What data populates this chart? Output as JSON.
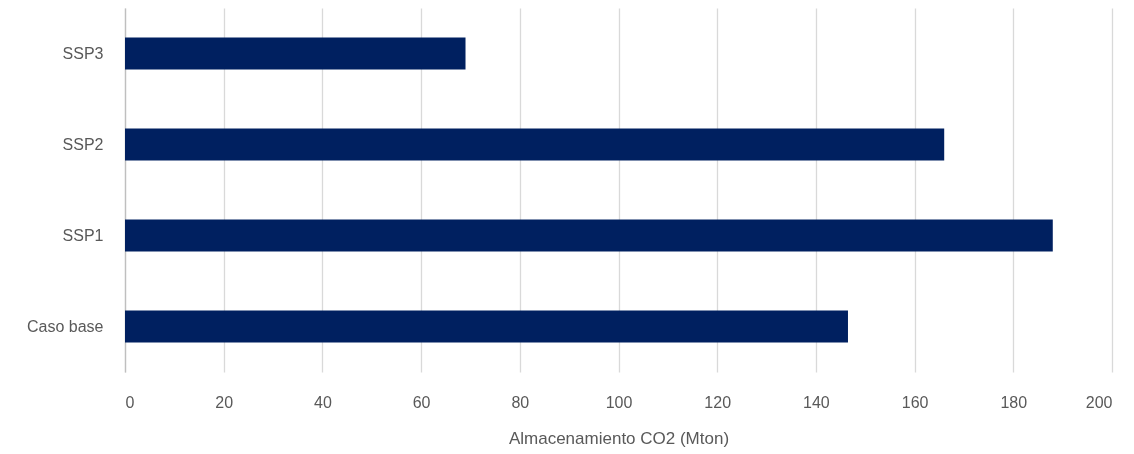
{
  "chart_data": {
    "type": "bar",
    "orientation": "horizontal",
    "categories": [
      "SSP3",
      "SSP2",
      "SSP1",
      "Caso base"
    ],
    "values": [
      69,
      166,
      188,
      146.5
    ],
    "color": "#002060",
    "xlabel": "Almacenamiento CO2 (Mton)",
    "xlim": [
      0,
      200
    ],
    "xticks": [
      0,
      20,
      40,
      60,
      80,
      100,
      120,
      140,
      160,
      180,
      200
    ],
    "grid": "x"
  }
}
